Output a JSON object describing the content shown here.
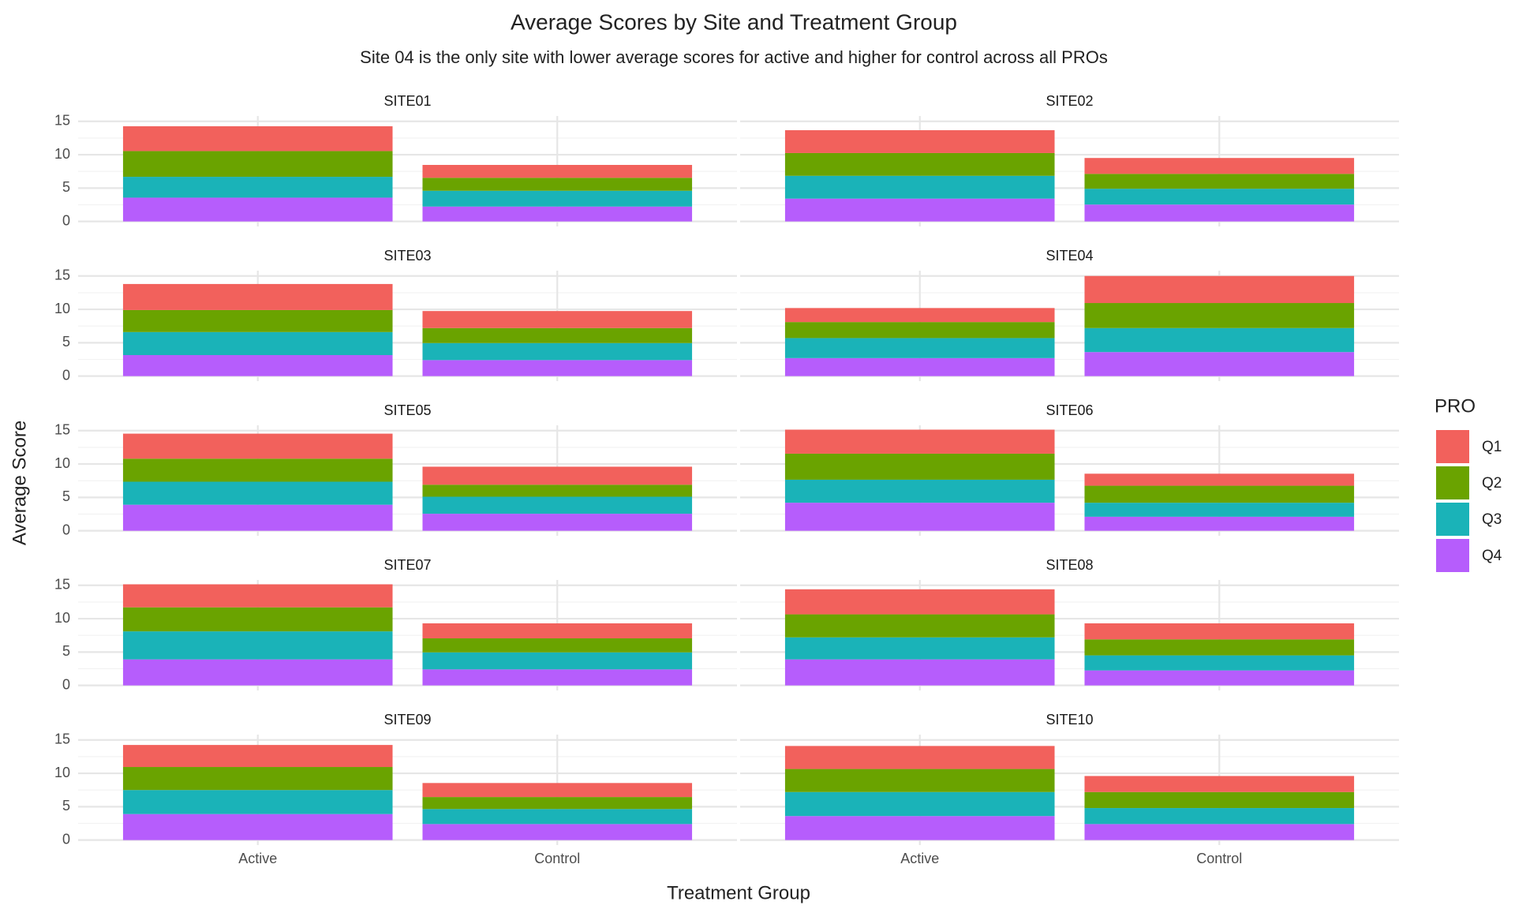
{
  "chart_data": {
    "type": "bar",
    "stacked": true,
    "title": "Average Scores by Site and Treatment Group",
    "subtitle": "Site 04 is the only site with lower average scores for active and higher for control across all PROs",
    "xlabel": "Treatment Group",
    "ylabel": "Average Score",
    "legend_title": "PRO",
    "legend_position": "right",
    "grid": true,
    "categories": [
      "Active",
      "Control"
    ],
    "ylim": [
      -0.75,
      15.8
    ],
    "yticks": [
      0,
      5,
      10,
      15
    ],
    "yminor": [
      2.5,
      7.5,
      12.5
    ],
    "series": [
      {
        "name": "Q1",
        "color": "#F2615C"
      },
      {
        "name": "Q2",
        "color": "#6AA300"
      },
      {
        "name": "Q3",
        "color": "#1AB3B8"
      },
      {
        "name": "Q4",
        "color": "#B65DFC"
      }
    ],
    "facets": [
      {
        "title": "SITE01",
        "series": [
          {
            "values": [
              3.71,
              1.93
            ]
          },
          {
            "values": [
              3.86,
              1.94
            ]
          },
          {
            "values": [
              3.12,
              2.37
            ]
          },
          {
            "values": [
              3.57,
              2.23
            ]
          }
        ]
      },
      {
        "title": "SITE02",
        "series": [
          {
            "values": [
              3.42,
              2.38
            ]
          },
          {
            "values": [
              3.41,
              2.23
            ]
          },
          {
            "values": [
              3.42,
              2.37
            ]
          },
          {
            "values": [
              3.42,
              2.53
            ]
          }
        ]
      },
      {
        "title": "SITE03",
        "series": [
          {
            "values": [
              3.9,
              2.55
            ]
          },
          {
            "values": [
              3.3,
              2.25
            ]
          },
          {
            "values": [
              3.45,
              2.55
            ]
          },
          {
            "values": [
              3.15,
              2.4
            ]
          }
        ]
      },
      {
        "title": "SITE04",
        "series": [
          {
            "values": [
              2.1,
              4.05
            ]
          },
          {
            "values": [
              2.4,
              3.75
            ]
          },
          {
            "values": [
              3.0,
              3.6
            ]
          },
          {
            "values": [
              2.7,
              3.6
            ]
          }
        ]
      },
      {
        "title": "SITE05",
        "series": [
          {
            "values": [
              3.75,
              2.7
            ]
          },
          {
            "values": [
              3.45,
              1.8
            ]
          },
          {
            "values": [
              3.45,
              2.55
            ]
          },
          {
            "values": [
              3.9,
              2.55
            ]
          }
        ]
      },
      {
        "title": "SITE06",
        "series": [
          {
            "values": [
              3.6,
              1.8
            ]
          },
          {
            "values": [
              3.9,
              2.55
            ]
          },
          {
            "values": [
              3.45,
              2.1
            ]
          },
          {
            "values": [
              4.2,
              2.1
            ]
          }
        ]
      },
      {
        "title": "SITE07",
        "series": [
          {
            "values": [
              3.45,
              2.25
            ]
          },
          {
            "values": [
              3.6,
              2.1
            ]
          },
          {
            "values": [
              4.2,
              2.55
            ]
          },
          {
            "values": [
              3.9,
              2.4
            ]
          }
        ]
      },
      {
        "title": "SITE08",
        "series": [
          {
            "values": [
              3.75,
              2.4
            ]
          },
          {
            "values": [
              3.45,
              2.4
            ]
          },
          {
            "values": [
              3.3,
              2.25
            ]
          },
          {
            "values": [
              3.9,
              2.25
            ]
          }
        ]
      },
      {
        "title": "SITE09",
        "series": [
          {
            "values": [
              3.3,
              2.1
            ]
          },
          {
            "values": [
              3.45,
              1.8
            ]
          },
          {
            "values": [
              3.6,
              2.25
            ]
          },
          {
            "values": [
              3.9,
              2.4
            ]
          }
        ]
      },
      {
        "title": "SITE10",
        "series": [
          {
            "values": [
              3.45,
              2.4
            ]
          },
          {
            "values": [
              3.45,
              2.4
            ]
          },
          {
            "values": [
              3.6,
              2.4
            ]
          },
          {
            "values": [
              3.6,
              2.4
            ]
          }
        ]
      }
    ]
  }
}
